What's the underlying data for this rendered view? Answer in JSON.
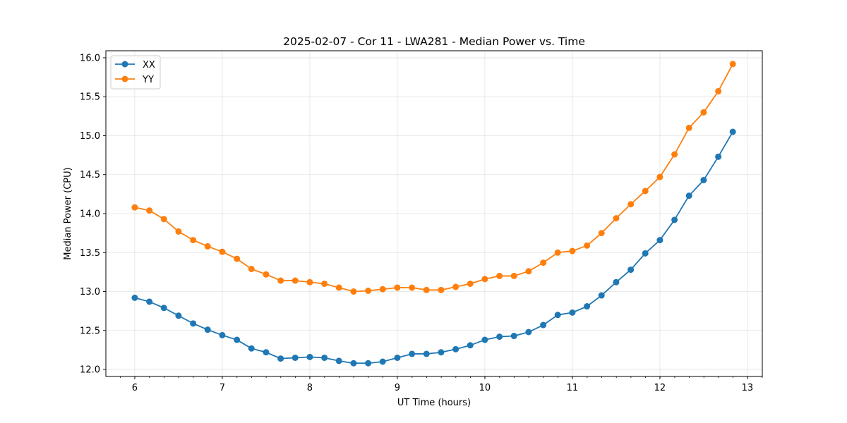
{
  "chart_data": {
    "type": "line",
    "title": "2025-02-07 - Cor 11 - LWA281 - Median Power vs. Time",
    "xlabel": "UT Time (hours)",
    "ylabel": "Median Power (CPU)",
    "xlim": [
      5.67,
      13.17
    ],
    "ylim": [
      11.91,
      16.09
    ],
    "xticks": [
      6,
      7,
      8,
      9,
      10,
      11,
      12,
      13
    ],
    "xtick_labels": [
      "6",
      "7",
      "8",
      "9",
      "10",
      "11",
      "12",
      "13"
    ],
    "yticks": [
      12.0,
      12.5,
      13.0,
      13.5,
      14.0,
      14.5,
      15.0,
      15.5,
      16.0
    ],
    "ytick_labels": [
      "12.0",
      "12.5",
      "13.0",
      "13.5",
      "14.0",
      "14.5",
      "15.0",
      "15.5",
      "16.0"
    ],
    "minor_xtick_step": 0.1667,
    "grid": true,
    "legend_position": "top-left",
    "x": [
      6.0,
      6.167,
      6.333,
      6.5,
      6.667,
      6.833,
      7.0,
      7.167,
      7.333,
      7.5,
      7.667,
      7.833,
      8.0,
      8.167,
      8.333,
      8.5,
      8.667,
      8.833,
      9.0,
      9.167,
      9.333,
      9.5,
      9.667,
      9.833,
      10.0,
      10.167,
      10.333,
      10.5,
      10.667,
      10.833,
      11.0,
      11.167,
      11.333,
      11.5,
      11.667,
      11.833,
      12.0,
      12.167,
      12.333,
      12.5,
      12.667,
      12.833
    ],
    "series": [
      {
        "name": "XX",
        "color": "#1f77b4",
        "values": [
          12.92,
          12.87,
          12.79,
          12.69,
          12.59,
          12.51,
          12.44,
          12.38,
          12.27,
          12.22,
          12.14,
          12.15,
          12.16,
          12.15,
          12.11,
          12.08,
          12.08,
          12.1,
          12.15,
          12.2,
          12.2,
          12.22,
          12.26,
          12.31,
          12.38,
          12.42,
          12.43,
          12.48,
          12.57,
          12.7,
          12.73,
          12.81,
          12.95,
          13.12,
          13.28,
          13.49,
          13.66,
          13.92,
          14.23,
          14.43,
          14.73,
          15.05
        ]
      },
      {
        "name": "YY",
        "color": "#ff7f0e",
        "values": [
          14.08,
          14.04,
          13.93,
          13.77,
          13.66,
          13.58,
          13.51,
          13.42,
          13.29,
          13.22,
          13.14,
          13.14,
          13.12,
          13.1,
          13.05,
          13.0,
          13.01,
          13.03,
          13.05,
          13.05,
          13.02,
          13.02,
          13.06,
          13.1,
          13.16,
          13.2,
          13.2,
          13.26,
          13.37,
          13.5,
          13.52,
          13.59,
          13.75,
          13.94,
          14.12,
          14.29,
          14.47,
          14.76,
          15.1,
          15.3,
          15.57,
          15.92
        ]
      }
    ]
  }
}
